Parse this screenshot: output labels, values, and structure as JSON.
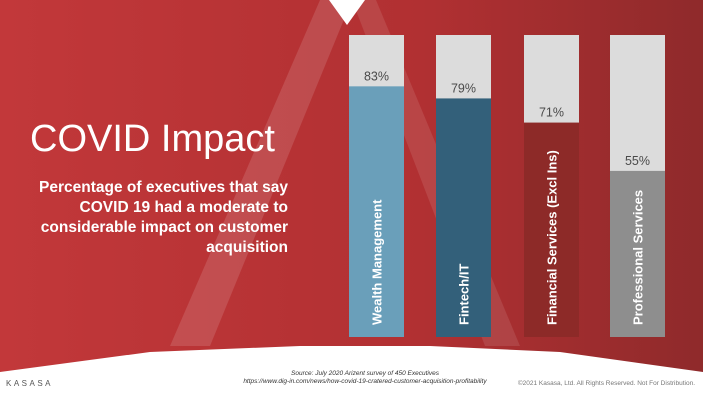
{
  "slide": {
    "title": "COVID Impact",
    "subtitle": "Percentage of executives that say COVID 19 had a moderate to considerable impact on customer acquisition",
    "source_line1": "Source: July 2020 Arizent survey of 450 Executives",
    "source_line2": "https://www.dig-in.com/news/how-covid-19-cratered-customer-acquisition-profitability",
    "copyright": "©2021 Kasasa, Ltd. All Rights Reserved. Not For Distribution.",
    "logo": "KASASA"
  },
  "colors": {
    "background_red": "#b3302f",
    "track": "#dcdcdc",
    "wealth": "#6a9fba",
    "fintech": "#33607a",
    "financial": "#8d2a28",
    "professional": "#8e8e8e"
  },
  "chart_data": {
    "type": "bar",
    "orientation": "vertical",
    "categories": [
      "Wealth Management",
      "Fintech/IT",
      "Financial Services (Excl Ins)",
      "Professional Services"
    ],
    "values": [
      83,
      79,
      71,
      55
    ],
    "value_labels": [
      "83%",
      "79%",
      "71%",
      "55%"
    ],
    "ylim": [
      0,
      100
    ],
    "grid": false,
    "legend": "none"
  }
}
